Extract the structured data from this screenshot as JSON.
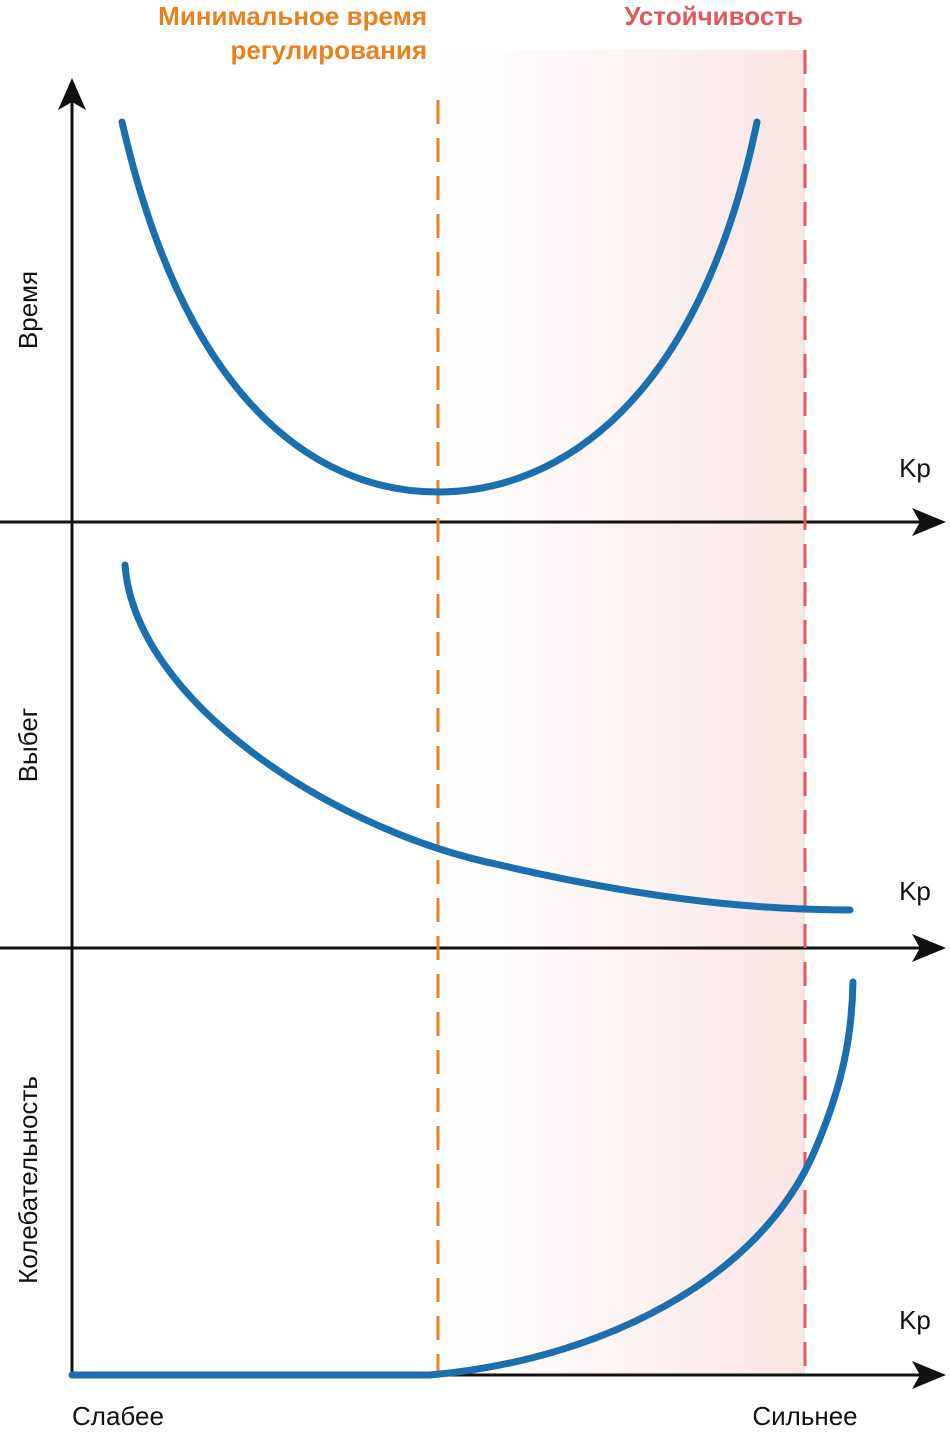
{
  "annotations": {
    "min_time": [
      "Минимальное время",
      "регулирования"
    ],
    "stability": "Устойчивость"
  },
  "panels": [
    {
      "y_label": "Время",
      "x_label": "Kp"
    },
    {
      "y_label": "Выбег",
      "x_label": "Kp"
    },
    {
      "y_label": "Колебательность",
      "x_label": "Kp"
    }
  ],
  "x_axis": {
    "left": "Слабее",
    "right": "Сильнее"
  }
}
